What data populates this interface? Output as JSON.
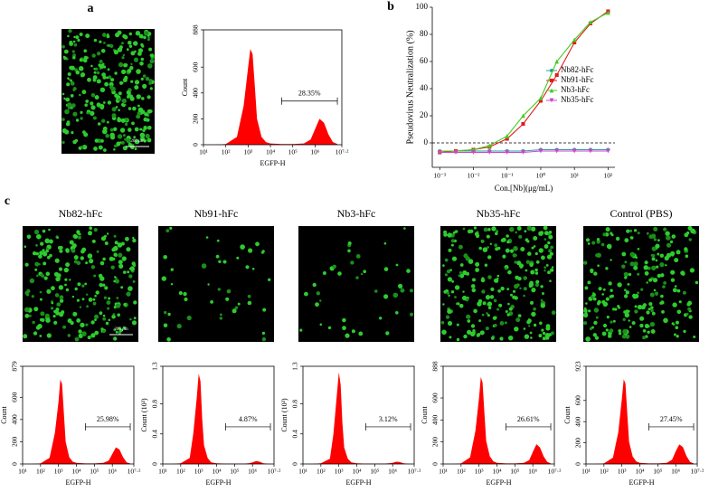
{
  "panel_labels": [
    "a",
    "b",
    "c"
  ],
  "scale_bars": [
    "200 μm",
    "200 μm"
  ],
  "image_titles": [
    "Nb82-hFc",
    "Nb91-hFc",
    "Nb3-hFc",
    "Nb35-hFc",
    "Control (PBS)"
  ],
  "chart_data": [
    {
      "type": "area",
      "xlabel": "EGFP-H",
      "ylabel": "Count",
      "annotation": "28.35%",
      "gate": [
        4.5,
        7
      ],
      "color": "#ff0000",
      "x": [
        1.5,
        2,
        2.5,
        2.8,
        3.0,
        3.1,
        3.2,
        3.3,
        3.4,
        3.6,
        3.8,
        4.0,
        4.5,
        5.0,
        5.5,
        5.8,
        6.0,
        6.2,
        6.4,
        6.6,
        6.8,
        7.0
      ],
      "values": [
        0,
        5,
        60,
        300,
        600,
        740,
        700,
        450,
        200,
        60,
        20,
        10,
        5,
        5,
        10,
        40,
        120,
        200,
        170,
        80,
        20,
        5
      ],
      "xlim": [
        1,
        7.2
      ],
      "ylim": [
        0,
        888
      ],
      "xticks": [
        {
          "value": 1,
          "label": "10¹"
        },
        {
          "value": 2,
          "label": "10²"
        },
        {
          "value": 3,
          "label": "10³"
        },
        {
          "value": 4,
          "label": "10⁴"
        },
        {
          "value": 5,
          "label": "10⁵"
        },
        {
          "value": 6,
          "label": "10⁶"
        },
        {
          "value": 7.2,
          "label": "10⁷·²"
        }
      ],
      "yticks": [
        0,
        200,
        400,
        600,
        888
      ]
    },
    {
      "type": "line",
      "xlabel": "Con.[Nb](μg/mL)",
      "ylabel": "Pseudovirus Neutralization (%)",
      "log_x": true,
      "legend": "right",
      "hline": 0,
      "x": [
        0.001,
        0.003,
        0.01,
        0.03,
        0.1,
        0.3,
        1,
        3,
        10,
        30,
        100
      ],
      "series": [
        {
          "name": "Nb82-hFc",
          "color": "#2a9d9d",
          "marker": "circle",
          "values": [
            -6,
            -6,
            -6,
            -6,
            -6,
            -6,
            -5,
            -5,
            -5,
            -5,
            -5
          ]
        },
        {
          "name": "Nb91-hFc",
          "color": "#e41a1c",
          "marker": "square",
          "values": [
            -7,
            -6,
            -5,
            -3,
            3,
            14,
            31,
            50,
            74,
            88,
            97
          ]
        },
        {
          "name": "Nb3-hFc",
          "color": "#44cc22",
          "marker": "triangle",
          "values": [
            -6,
            -6,
            -5,
            -2,
            5,
            20,
            33,
            60,
            76,
            89,
            96
          ]
        },
        {
          "name": "Nb35-hFc",
          "color": "#cc44cc",
          "marker": "triangle-down",
          "values": [
            -7,
            -7,
            -7,
            -7,
            -7,
            -7,
            -6,
            -6,
            -6,
            -6,
            -6
          ]
        }
      ],
      "xlim": [
        0.0006,
        160
      ],
      "ylim": [
        -18,
        100
      ],
      "xticks": [
        {
          "value": 0.001,
          "label": "10⁻³"
        },
        {
          "value": 0.01,
          "label": "10⁻²"
        },
        {
          "value": 0.1,
          "label": "10⁻¹"
        },
        {
          "value": 1,
          "label": "10⁰"
        },
        {
          "value": 10,
          "label": "10¹"
        },
        {
          "value": 100,
          "label": "10²"
        }
      ],
      "yticks": [
        0,
        20,
        40,
        60,
        80,
        100
      ]
    },
    {
      "type": "area",
      "xlabel": "EGFP-H",
      "ylabel": "Count",
      "annotation": "25.98%",
      "gate": [
        4.5,
        7
      ],
      "color": "#ff0000",
      "x": [
        1.5,
        2,
        2.5,
        2.8,
        3.0,
        3.1,
        3.2,
        3.3,
        3.4,
        3.6,
        3.8,
        4.0,
        4.5,
        5.0,
        5.5,
        5.8,
        6.0,
        6.2,
        6.4,
        6.6,
        6.8,
        7.0
      ],
      "values": [
        0,
        5,
        55,
        280,
        560,
        760,
        720,
        460,
        200,
        60,
        20,
        10,
        5,
        5,
        10,
        30,
        90,
        150,
        130,
        60,
        15,
        5
      ],
      "xlim": [
        1,
        7.2
      ],
      "ylim": [
        0,
        879
      ],
      "xticks": [
        {
          "value": 1,
          "label": "10¹"
        },
        {
          "value": 2,
          "label": "10²"
        },
        {
          "value": 3,
          "label": "10³"
        },
        {
          "value": 4,
          "label": "10⁴"
        },
        {
          "value": 5,
          "label": "10⁵"
        },
        {
          "value": 6,
          "label": "10⁶"
        },
        {
          "value": 7.2,
          "label": "10⁷·²"
        }
      ],
      "yticks": [
        0,
        200,
        400,
        600,
        879
      ]
    },
    {
      "type": "area",
      "xlabel": "EGFP-H",
      "ylabel": "Count (10³)",
      "annotation": "4.87%",
      "gate": [
        4.5,
        7
      ],
      "color": "#ff0000",
      "x": [
        1.5,
        2,
        2.5,
        2.7,
        2.9,
        3.0,
        3.1,
        3.2,
        3.3,
        3.5,
        3.7,
        4.0,
        4.5,
        5.0,
        5.5,
        5.8,
        6.0,
        6.2,
        6.4,
        6.6,
        6.8,
        7.0
      ],
      "values": [
        0,
        0.01,
        0.08,
        0.4,
        0.9,
        1.2,
        1.1,
        0.6,
        0.25,
        0.08,
        0.02,
        0.01,
        0.005,
        0.005,
        0.005,
        0.01,
        0.02,
        0.04,
        0.03,
        0.01,
        0.005,
        0
      ],
      "xlim": [
        1,
        7.2
      ],
      "ylim": [
        0,
        1.3
      ],
      "xticks": [
        {
          "value": 1,
          "label": "10¹"
        },
        {
          "value": 2,
          "label": "10²"
        },
        {
          "value": 3,
          "label": "10³"
        },
        {
          "value": 4,
          "label": "10⁴"
        },
        {
          "value": 5,
          "label": "10⁵"
        },
        {
          "value": 6,
          "label": "10⁶"
        },
        {
          "value": 7.2,
          "label": "10⁷·²"
        }
      ],
      "yticks": [
        0,
        0.4,
        0.8,
        1.3
      ]
    },
    {
      "type": "area",
      "xlabel": "EGFP-H",
      "ylabel": "Count (10³)",
      "annotation": "3.12%",
      "gate": [
        4.5,
        7
      ],
      "color": "#ff0000",
      "x": [
        1.5,
        2,
        2.5,
        2.7,
        2.9,
        3.0,
        3.1,
        3.2,
        3.3,
        3.5,
        3.7,
        4.0,
        4.5,
        5.0,
        5.5,
        5.8,
        6.0,
        6.2,
        6.4,
        6.6,
        6.8,
        7.0
      ],
      "values": [
        0,
        0.01,
        0.07,
        0.4,
        0.95,
        1.22,
        1.05,
        0.55,
        0.22,
        0.07,
        0.02,
        0.01,
        0.005,
        0.005,
        0.005,
        0.008,
        0.015,
        0.03,
        0.025,
        0.01,
        0.005,
        0
      ],
      "xlim": [
        1,
        7.2
      ],
      "ylim": [
        0,
        1.3
      ],
      "xticks": [
        {
          "value": 1,
          "label": "10¹"
        },
        {
          "value": 2,
          "label": "10²"
        },
        {
          "value": 3,
          "label": "10³"
        },
        {
          "value": 4,
          "label": "10⁴"
        },
        {
          "value": 5,
          "label": "10⁵"
        },
        {
          "value": 6,
          "label": "10⁶"
        },
        {
          "value": 7.2,
          "label": "10⁷·²"
        }
      ],
      "yticks": [
        0,
        0.4,
        0.8,
        1.3
      ]
    },
    {
      "type": "area",
      "xlabel": "EGFP-H",
      "ylabel": "Count",
      "annotation": "26.61%",
      "gate": [
        4.5,
        7
      ],
      "color": "#ff0000",
      "x": [
        1.5,
        2,
        2.5,
        2.8,
        3.0,
        3.1,
        3.2,
        3.3,
        3.4,
        3.6,
        3.8,
        4.0,
        4.5,
        5.0,
        5.5,
        5.8,
        6.0,
        6.2,
        6.4,
        6.6,
        6.8,
        7.0
      ],
      "values": [
        0,
        5,
        60,
        300,
        600,
        790,
        740,
        470,
        210,
        70,
        25,
        10,
        5,
        5,
        10,
        35,
        110,
        180,
        150,
        70,
        20,
        5
      ],
      "xlim": [
        1,
        7.2
      ],
      "ylim": [
        0,
        888
      ],
      "xticks": [
        {
          "value": 1,
          "label": "10¹"
        },
        {
          "value": 2,
          "label": "10²"
        },
        {
          "value": 3,
          "label": "10³"
        },
        {
          "value": 4,
          "label": "10⁴"
        },
        {
          "value": 5,
          "label": "10⁵"
        },
        {
          "value": 6,
          "label": "10⁶"
        },
        {
          "value": 7.2,
          "label": "10⁷·²"
        }
      ],
      "yticks": [
        0,
        200,
        400,
        600,
        888
      ]
    },
    {
      "type": "area",
      "xlabel": "EGFP-H",
      "ylabel": "Count",
      "annotation": "27.45%",
      "gate": [
        4.5,
        7
      ],
      "color": "#ff0000",
      "x": [
        1.5,
        2,
        2.5,
        2.8,
        3.0,
        3.1,
        3.2,
        3.3,
        3.4,
        3.6,
        3.8,
        4.0,
        4.5,
        5.0,
        5.5,
        5.8,
        6.0,
        6.2,
        6.4,
        6.6,
        6.8,
        7.0
      ],
      "values": [
        0,
        5,
        60,
        300,
        620,
        800,
        760,
        480,
        210,
        70,
        25,
        10,
        5,
        5,
        10,
        40,
        120,
        185,
        160,
        75,
        20,
        5
      ],
      "xlim": [
        1,
        7.2
      ],
      "ylim": [
        0,
        923
      ],
      "xticks": [
        {
          "value": 1,
          "label": "10¹"
        },
        {
          "value": 2,
          "label": "10²"
        },
        {
          "value": 3,
          "label": "10³"
        },
        {
          "value": 4,
          "label": "10⁴"
        },
        {
          "value": 5,
          "label": "10⁵"
        },
        {
          "value": 6,
          "label": "10⁶"
        },
        {
          "value": 7.2,
          "label": "10⁷·²"
        }
      ],
      "yticks": [
        0,
        200,
        400,
        600,
        923
      ]
    }
  ]
}
